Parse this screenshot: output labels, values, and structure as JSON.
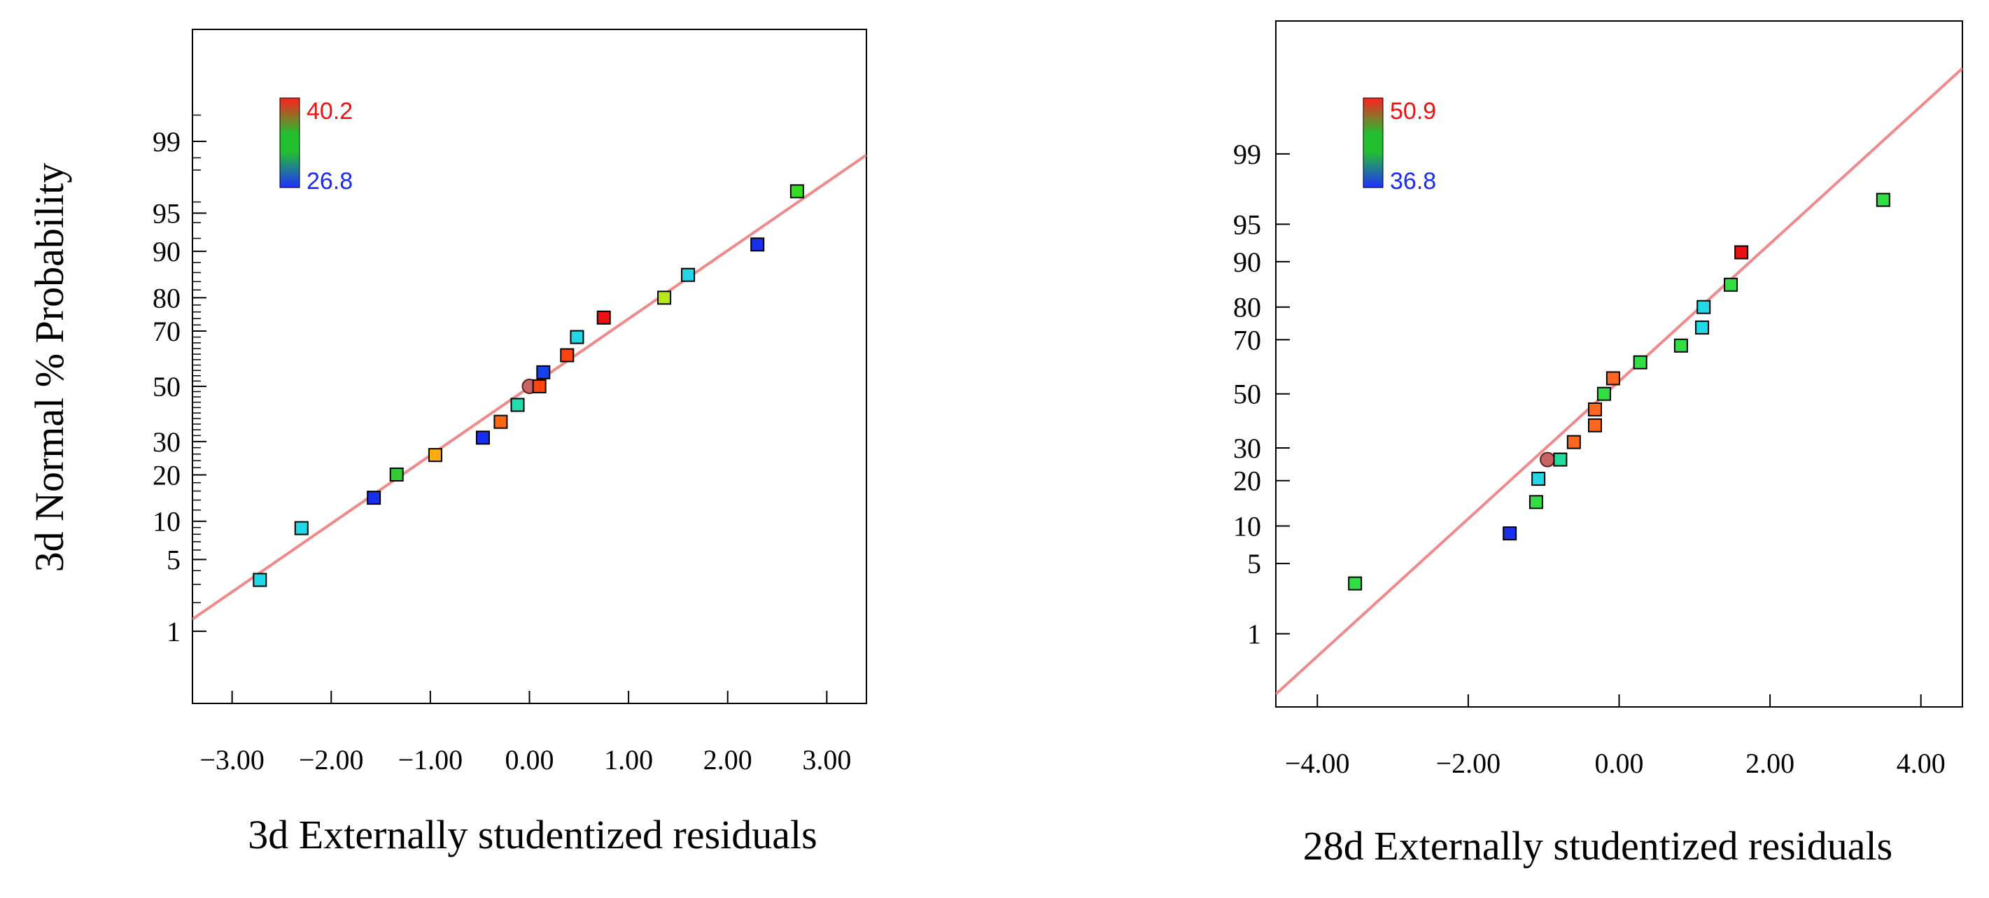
{
  "chart_data": [
    {
      "type": "scatter",
      "subtype": "normal-probability-plot",
      "xlabel": "3d Externally studentized residuals",
      "ylabel": "3d Normal % Probability",
      "xlim": [
        -3.4,
        3.4
      ],
      "x_ticks": [
        -3.0,
        -2.0,
        -1.0,
        0.0,
        1.0,
        2.0,
        3.0
      ],
      "x_tick_labels": [
        "−3.00",
        "−2.00",
        "−1.00",
        "0.00",
        "1.00",
        "2.00",
        "3.00"
      ],
      "y_ticks": [
        1,
        5,
        10,
        20,
        30,
        50,
        70,
        80,
        90,
        95,
        99
      ],
      "y_tick_labels": [
        "1",
        "5",
        "10",
        "20",
        "30",
        "50",
        "70",
        "80",
        "90",
        "95",
        "99"
      ],
      "ylim_prob": [
        0.13,
        99.965
      ],
      "fit_line": {
        "color": "#f08a8a",
        "x": [
          -3.4,
          3.4
        ],
        "prob": [
          1.35,
          98.6
        ]
      },
      "color_scale": {
        "min_label": "26.8",
        "max_label": "40.2",
        "min_color": "#2030ff",
        "max_color": "#ff2020"
      },
      "points": [
        {
          "x": -2.72,
          "prob": 3.3,
          "color": "#22d8e6"
        },
        {
          "x": -2.3,
          "prob": 8.9,
          "color": "#22d8e6"
        },
        {
          "x": -1.57,
          "prob": 14.5,
          "color": "#1830ee"
        },
        {
          "x": -1.34,
          "prob": 20.1,
          "color": "#33cc33"
        },
        {
          "x": -0.95,
          "prob": 25.7,
          "color": "#ffaa11"
        },
        {
          "x": -0.47,
          "prob": 31.3,
          "color": "#1830ee"
        },
        {
          "x": -0.29,
          "prob": 36.8,
          "color": "#ff6611"
        },
        {
          "x": -0.12,
          "prob": 43.0,
          "color": "#22ddaa"
        },
        {
          "x": 0.0,
          "prob": 50.0,
          "color": "#c86464",
          "marker": "circle"
        },
        {
          "x": 0.1,
          "prob": 50.0,
          "color": "#ff4411"
        },
        {
          "x": 0.14,
          "prob": 55.3,
          "color": "#1840ee"
        },
        {
          "x": 0.38,
          "prob": 61.6,
          "color": "#ff4411"
        },
        {
          "x": 0.48,
          "prob": 68.0,
          "color": "#22d8e6"
        },
        {
          "x": 0.75,
          "prob": 74.3,
          "color": "#ee1111"
        },
        {
          "x": 1.36,
          "prob": 80.0,
          "color": "#b8e81a"
        },
        {
          "x": 1.6,
          "prob": 85.5,
          "color": "#22d8e6"
        },
        {
          "x": 2.3,
          "prob": 91.1,
          "color": "#1830ee"
        },
        {
          "x": 2.7,
          "prob": 96.8,
          "color": "#33dd22"
        }
      ]
    },
    {
      "type": "scatter",
      "subtype": "normal-probability-plot",
      "xlabel": "28d Externally studentized residuals",
      "ylabel": "",
      "xlim": [
        -4.55,
        4.55
      ],
      "x_ticks": [
        -4.0,
        -2.0,
        0.0,
        2.0,
        4.0
      ],
      "x_tick_labels": [
        "−4.00",
        "−2.00",
        "0.00",
        "2.00",
        "4.00"
      ],
      "y_ticks": [
        1,
        5,
        10,
        20,
        30,
        50,
        70,
        80,
        90,
        95,
        99
      ],
      "y_tick_labels": [
        "1",
        "5",
        "10",
        "20",
        "30",
        "50",
        "70",
        "80",
        "90",
        "95",
        "99"
      ],
      "ylim_prob": [
        0.12,
        99.985
      ],
      "fit_line": {
        "color": "#f08a8a",
        "x": [
          -4.55,
          4.55
        ],
        "prob": [
          0.18,
          99.92
        ]
      },
      "color_scale": {
        "min_label": "36.8",
        "max_label": "50.9",
        "min_color": "#2030ff",
        "max_color": "#ff2020"
      },
      "points": [
        {
          "x": -3.5,
          "prob": 3.3,
          "color": "#33dd44"
        },
        {
          "x": -1.45,
          "prob": 8.8,
          "color": "#1830ee"
        },
        {
          "x": -1.1,
          "prob": 14.7,
          "color": "#33dd44"
        },
        {
          "x": -1.07,
          "prob": 20.5,
          "color": "#22d8e6"
        },
        {
          "x": -0.95,
          "prob": 26.2,
          "color": "#c86464",
          "marker": "circle"
        },
        {
          "x": -0.78,
          "prob": 26.2,
          "color": "#22dd99"
        },
        {
          "x": -0.6,
          "prob": 32.0,
          "color": "#ff6622"
        },
        {
          "x": -0.32,
          "prob": 38.0,
          "color": "#ff6622"
        },
        {
          "x": -0.32,
          "prob": 44.0,
          "color": "#ff6622"
        },
        {
          "x": -0.2,
          "prob": 50.0,
          "color": "#33dd44"
        },
        {
          "x": -0.08,
          "prob": 56.0,
          "color": "#ff6622"
        },
        {
          "x": 0.28,
          "prob": 62.0,
          "color": "#33dd44"
        },
        {
          "x": 0.82,
          "prob": 68.0,
          "color": "#33dd44"
        },
        {
          "x": 1.1,
          "prob": 74.0,
          "color": "#22d8e6"
        },
        {
          "x": 1.12,
          "prob": 80.0,
          "color": "#22d8e6"
        },
        {
          "x": 1.48,
          "prob": 85.5,
          "color": "#33dd44"
        },
        {
          "x": 1.62,
          "prob": 91.5,
          "color": "#ee1111"
        },
        {
          "x": 3.5,
          "prob": 97.0,
          "color": "#33dd44"
        }
      ]
    }
  ]
}
